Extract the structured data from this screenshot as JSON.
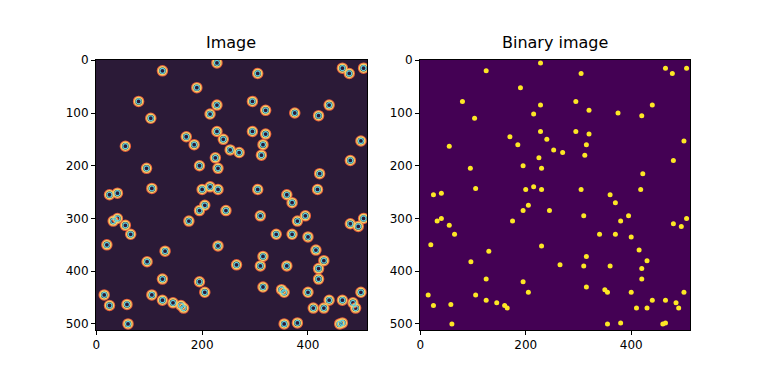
{
  "chart_data": [
    {
      "type": "scatter",
      "title": "Image",
      "marker": "ring",
      "color": "#f2d16b",
      "x": [
        125,
        228,
        305,
        465,
        478,
        505,
        190,
        80,
        228,
        295,
        320,
        375,
        420,
        440,
        103,
        215,
        228,
        240,
        295,
        320,
        170,
        185,
        253,
        270,
        315,
        500,
        55,
        225,
        230,
        312,
        480,
        95,
        195,
        105,
        230,
        305,
        422,
        418,
        200,
        215,
        25,
        40,
        195,
        245,
        205,
        360,
        370,
        395,
        310,
        175,
        340,
        32,
        40,
        55,
        65,
        480,
        495,
        505,
        380,
        20,
        130,
        230,
        310,
        315,
        370,
        400,
        415,
        360,
        96,
        265,
        430,
        420,
        420,
        125,
        195,
        105,
        160,
        165,
        205,
        315,
        350,
        355,
        400,
        440,
        15,
        25,
        58,
        125,
        145,
        410,
        430,
        465,
        485,
        490,
        500,
        60,
        355,
        380,
        460,
        465
      ],
      "y": [
        20,
        5,
        25,
        15,
        25,
        15,
        52,
        78,
        85,
        78,
        95,
        100,
        105,
        85,
        110,
        102,
        135,
        150,
        135,
        140,
        145,
        160,
        170,
        175,
        160,
        153,
        163,
        185,
        205,
        180,
        190,
        205,
        200,
        243,
        245,
        245,
        215,
        245,
        245,
        240,
        255,
        252,
        285,
        285,
        275,
        255,
        270,
        295,
        295,
        305,
        330,
        305,
        300,
        313,
        330,
        310,
        315,
        300,
        305,
        350,
        362,
        352,
        390,
        372,
        330,
        335,
        360,
        390,
        382,
        388,
        380,
        395,
        415,
        415,
        420,
        445,
        465,
        470,
        440,
        430,
        435,
        440,
        440,
        455,
        445,
        465,
        463,
        455,
        460,
        470,
        470,
        455,
        460,
        470,
        440,
        500,
        500,
        498,
        500,
        498
      ],
      "xlim": [
        -0.5,
        511.5
      ],
      "ylim": [
        511.5,
        -0.5
      ],
      "xticks": [
        0,
        200,
        400
      ],
      "yticks": [
        0,
        100,
        200,
        300,
        400,
        500
      ],
      "grid": false
    },
    {
      "type": "scatter",
      "title": "Binary image",
      "marker": "dot",
      "color": "#fde725",
      "x": [
        125,
        228,
        305,
        465,
        478,
        505,
        190,
        80,
        228,
        295,
        320,
        375,
        420,
        440,
        103,
        215,
        228,
        240,
        295,
        320,
        170,
        185,
        253,
        270,
        315,
        500,
        55,
        225,
        230,
        312,
        480,
        95,
        195,
        105,
        230,
        305,
        422,
        418,
        200,
        215,
        25,
        40,
        195,
        245,
        205,
        360,
        370,
        395,
        310,
        175,
        340,
        32,
        40,
        55,
        65,
        480,
        495,
        505,
        380,
        20,
        130,
        230,
        310,
        315,
        370,
        400,
        415,
        360,
        96,
        265,
        430,
        420,
        420,
        125,
        195,
        105,
        160,
        165,
        205,
        315,
        350,
        355,
        400,
        440,
        15,
        25,
        58,
        125,
        145,
        410,
        430,
        465,
        485,
        490,
        500,
        60,
        355,
        380,
        460,
        465
      ],
      "y": [
        20,
        5,
        25,
        15,
        25,
        15,
        52,
        78,
        85,
        78,
        95,
        100,
        105,
        85,
        110,
        102,
        135,
        150,
        135,
        140,
        145,
        160,
        170,
        175,
        160,
        153,
        163,
        185,
        205,
        180,
        190,
        205,
        200,
        243,
        245,
        245,
        215,
        245,
        245,
        240,
        255,
        252,
        285,
        285,
        275,
        255,
        270,
        295,
        295,
        305,
        330,
        305,
        300,
        313,
        330,
        310,
        315,
        300,
        305,
        350,
        362,
        352,
        390,
        372,
        330,
        335,
        360,
        390,
        382,
        388,
        380,
        395,
        415,
        415,
        420,
        445,
        465,
        470,
        440,
        430,
        435,
        440,
        440,
        455,
        445,
        465,
        463,
        455,
        460,
        470,
        470,
        455,
        460,
        470,
        440,
        500,
        500,
        498,
        500,
        498
      ],
      "xlim": [
        -0.5,
        511.5
      ],
      "ylim": [
        511.5,
        -0.5
      ],
      "xticks": [
        0,
        200,
        400
      ],
      "yticks": [
        0,
        100,
        200,
        300,
        400,
        500
      ],
      "grid": false
    }
  ]
}
